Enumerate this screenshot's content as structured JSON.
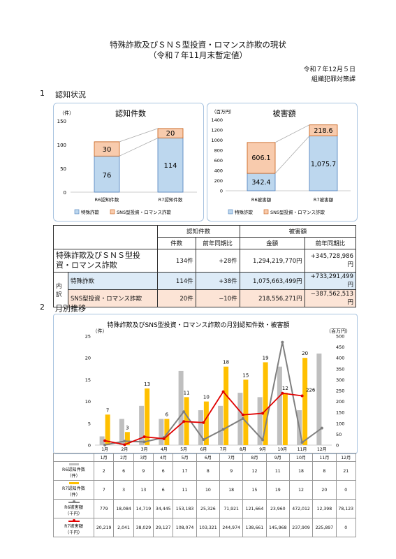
{
  "header": {
    "title_line1": "特殊詐欺及びＳＮＳ型投資・ロマンス詐欺の現状",
    "title_line2": "（令和７年11月末暫定値）",
    "date": "令和７年12月５日",
    "dept": "組織犯罪対策課"
  },
  "section1": {
    "num": "1",
    "label": "認知状況"
  },
  "section2": {
    "num": "2",
    "label": "月別推移"
  },
  "colors": {
    "fraud": "#bdd7ee",
    "sns": "#f8cbad",
    "gray_bar": "#bfbfbf",
    "yellow_bar": "#ffc000",
    "r6_line": "#7f7f7f",
    "r7_line": "#e00000"
  },
  "chart_left": {
    "title": "認知件数",
    "unit": "（件）",
    "yticks": [
      "150",
      "100",
      "50",
      "0"
    ],
    "categories": [
      "R6認知件数",
      "R7認知件数"
    ],
    "fraud_labels": [
      "76",
      "114"
    ],
    "sns_labels": [
      "30",
      "20"
    ],
    "legend_fraud": "特殊詐欺",
    "legend_sns": "SNS型投資・ロマンス詐欺"
  },
  "chart_right": {
    "title": "被害額",
    "unit": "（百万円）",
    "yticks": [
      "1400",
      "1200",
      "1000",
      "800",
      "600",
      "400",
      "200",
      "0"
    ],
    "categories": [
      "R6被害額",
      "R7被害額"
    ],
    "fraud_labels": [
      "342.4",
      "1,075.7"
    ],
    "sns_labels": [
      "606.1",
      "218.6"
    ],
    "legend_fraud": "特殊詐欺",
    "legend_sns": "SNS型投資・ロマンス詐欺"
  },
  "summary": {
    "col_count": "認知件数",
    "col_damage": "被害額",
    "sub_count": "件数",
    "sub_count_yoy": "前年同期比",
    "sub_amount": "金額",
    "sub_amount_yoy": "前年同期比",
    "total_label": "特殊詐欺及びＳＮＳ型投資・ロマンス詐欺",
    "total_count": "134件",
    "total_count_yoy": "+28件",
    "total_amount": "1,294,219,770円",
    "total_amount_yoy": "+345,728,986円",
    "breakdown": "内訳",
    "row1_label": "特殊詐欺",
    "row1_count": "114件",
    "row1_count_yoy": "+38件",
    "row1_amount": "1,075,663,499円",
    "row1_amount_yoy": "+733,291,499円",
    "row2_label": "SNS型投資・ロマンス詐欺",
    "row2_count": "20件",
    "row2_count_yoy": "−10件",
    "row2_amount": "218,556,271円",
    "row2_amount_yoy": "−387,562,513円"
  },
  "monthly_chart": {
    "title": "特殊詐欺及びSNS型投資・ロマンス詐欺の月別認知件数・被害額",
    "left_unit": "（件）",
    "right_unit": "（百万円）",
    "left_ticks": [
      "25",
      "20",
      "15",
      "10",
      "5",
      "0"
    ],
    "right_ticks": [
      "500",
      "450",
      "400",
      "350",
      "300",
      "250",
      "200",
      "150",
      "100",
      "50",
      "0"
    ],
    "r7_labels": [
      "7",
      "3",
      "13",
      "6",
      "11",
      "10",
      "18",
      "15",
      "19",
      "12",
      "20",
      ""
    ],
    "r7_damage_label": "226"
  },
  "monthly_table": {
    "row_labels": [
      "R6認知件数\n（件）",
      "R7認知件数\n（件）",
      "R6被害額\n（千円）",
      "R7被害額\n（千円）"
    ]
  },
  "chart_data": {
    "type": "bar",
    "categories": [
      "1月",
      "2月",
      "3月",
      "4月",
      "5月",
      "6月",
      "7月",
      "8月",
      "9月",
      "10月",
      "11月",
      "12月"
    ],
    "series": [
      {
        "name": "R6認知件数",
        "unit": "件",
        "values": [
          2,
          6,
          9,
          6,
          17,
          8,
          9,
          12,
          11,
          18,
          8,
          21
        ]
      },
      {
        "name": "R7認知件数",
        "unit": "件",
        "values": [
          7,
          3,
          13,
          6,
          11,
          10,
          18,
          15,
          19,
          12,
          20,
          0
        ]
      },
      {
        "name": "R6被害額",
        "unit": "千円",
        "values": [
          779,
          18084,
          14719,
          34445,
          153183,
          25326,
          71921,
          121664,
          23960,
          472012,
          12398,
          78123
        ]
      },
      {
        "name": "R7被害額",
        "unit": "千円",
        "values": [
          20219,
          2041,
          38029,
          29127,
          108074,
          103321,
          244974,
          138661,
          145968,
          237909,
          225897,
          0
        ]
      }
    ],
    "left_ylim": [
      0,
      25
    ],
    "right_ylim": [
      0,
      500
    ]
  }
}
